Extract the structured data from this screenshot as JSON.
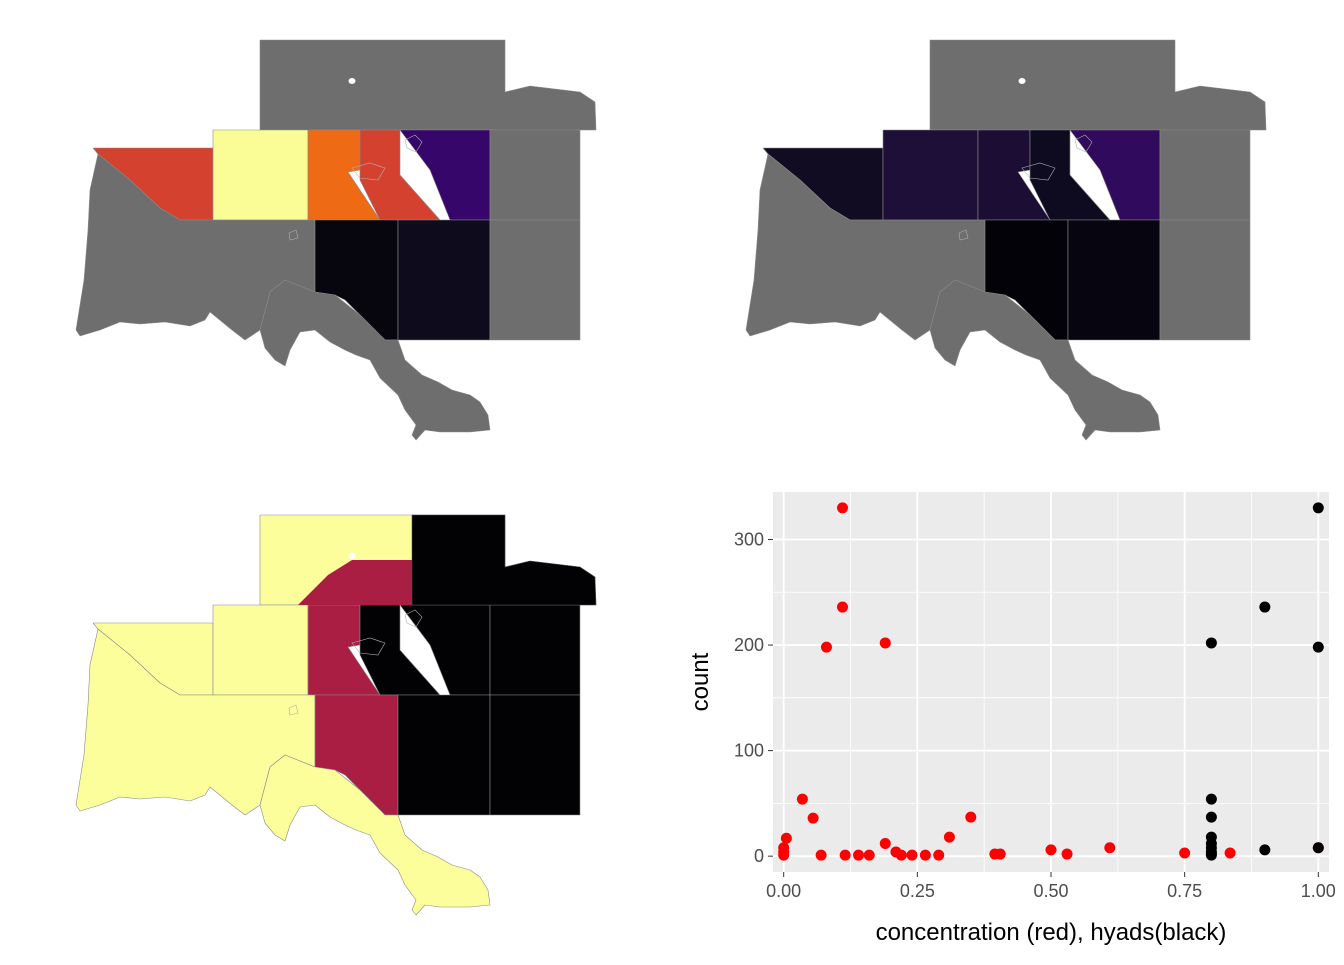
{
  "maps": [
    {
      "id": "map-top-left",
      "region_colors": {
        "northeast": "#6e6e6e",
        "west": "#d4412f",
        "west_center": "#fafd95",
        "center": "#ef6a15",
        "center_east": "#d4412f",
        "east_strip": "#36066a",
        "far_east": "#6e6e6e",
        "south_west": "#6e6e6e",
        "south_center": "#07060f",
        "south_east": "#0d0b1c",
        "south_far_east": "#6e6e6e"
      }
    },
    {
      "id": "map-top-right",
      "region_colors": {
        "northeast": "#6e6e6e",
        "west": "#120c22",
        "west_center": "#1d0f37",
        "center": "#1b0d33",
        "center_east": "#0e0a1f",
        "east_strip": "#300a5c",
        "far_east": "#6e6e6e",
        "south_west": "#6e6e6e",
        "south_center": "#030208",
        "south_east": "#070510",
        "south_far_east": "#6e6e6e"
      }
    },
    {
      "id": "map-bottom-left",
      "region_colors": {
        "northeast": "#fcfe9c",
        "northeast_right": "#020104",
        "west": "#fcfe9c",
        "west_center": "#fcfe9c",
        "center": "#a91e42",
        "center_east": "#020104",
        "east_strip": "#020104",
        "far_east": "#020104",
        "south_west": "#fcfe9c",
        "south_center": "#a91e42",
        "south_east": "#020104",
        "south_far_east": "#020104"
      }
    }
  ],
  "chart_data": {
    "type": "scatter",
    "title": "",
    "xlabel": "concentration (red), hyads(black)",
    "ylabel": "count",
    "xlim": [
      -0.02,
      1.02
    ],
    "ylim": [
      -15,
      345
    ],
    "x_ticks": [
      0,
      0.25,
      0.5,
      0.75,
      1
    ],
    "x_tick_labels": [
      "0.00",
      "0.25",
      "0.50",
      "0.75",
      "1.00"
    ],
    "y_ticks": [
      0,
      100,
      200,
      300
    ],
    "y_tick_labels": [
      "0",
      "100",
      "200",
      "300"
    ],
    "grid": true,
    "panel_background": "#ebebeb",
    "series": [
      {
        "color": "#ff0000",
        "points": [
          [
            0.11,
            330
          ],
          [
            0.11,
            236
          ],
          [
            0.08,
            198
          ],
          [
            0.19,
            202
          ],
          [
            0.035,
            54
          ],
          [
            0.055,
            36
          ],
          [
            0.005,
            17
          ],
          [
            0.0,
            8
          ],
          [
            0.0,
            4
          ],
          [
            0.0,
            1
          ],
          [
            0.07,
            1
          ],
          [
            0.115,
            1
          ],
          [
            0.14,
            1
          ],
          [
            0.16,
            1
          ],
          [
            0.19,
            12
          ],
          [
            0.21,
            4
          ],
          [
            0.22,
            1
          ],
          [
            0.24,
            1
          ],
          [
            0.265,
            1
          ],
          [
            0.29,
            1
          ],
          [
            0.31,
            18
          ],
          [
            0.35,
            37
          ],
          [
            0.395,
            2
          ],
          [
            0.405,
            2
          ],
          [
            0.5,
            6
          ],
          [
            0.53,
            2
          ],
          [
            0.61,
            8
          ],
          [
            0.75,
            3
          ],
          [
            0.835,
            3
          ],
          [
            1.0,
            8
          ]
        ]
      },
      {
        "color": "#000000",
        "points": [
          [
            1.0,
            330
          ],
          [
            0.9,
            236
          ],
          [
            1.0,
            198
          ],
          [
            0.8,
            202
          ],
          [
            0.8,
            54
          ],
          [
            0.8,
            37
          ],
          [
            0.8,
            18
          ],
          [
            0.8,
            12
          ],
          [
            0.8,
            8
          ],
          [
            0.8,
            4
          ],
          [
            0.8,
            2
          ],
          [
            0.8,
            1
          ],
          [
            0.9,
            6
          ],
          [
            1.0,
            8
          ]
        ]
      }
    ]
  }
}
